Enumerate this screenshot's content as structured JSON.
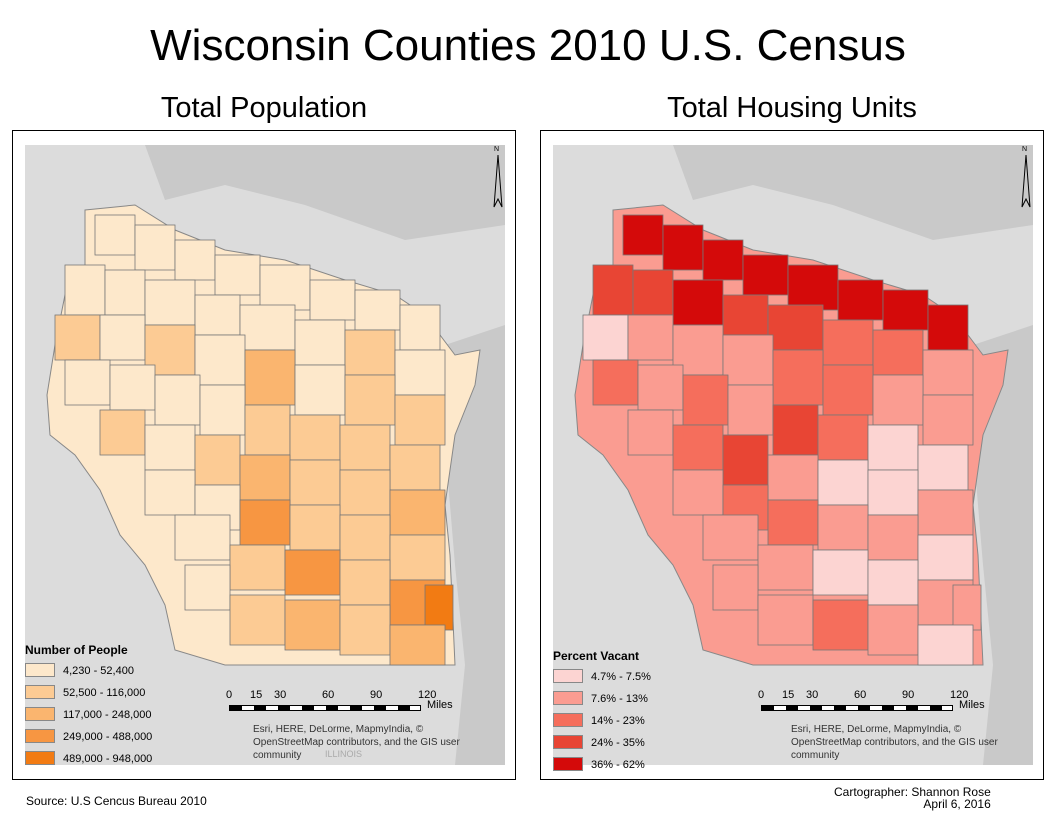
{
  "title": "Wisconsin Counties 2010 U.S. Census",
  "maps": {
    "left": {
      "subtitle": "Total Population",
      "legend_title": "Number of People",
      "legend": [
        {
          "label": "4,230 - 52,400",
          "color": "#fde8cb"
        },
        {
          "label": "52,500 - 116,000",
          "color": "#fccb94"
        },
        {
          "label": "117,000 - 248,000",
          "color": "#fab56f"
        },
        {
          "label": "249,000 - 488,000",
          "color": "#f79642"
        },
        {
          "label": "489,000 - 948,000",
          "color": "#f27b13"
        }
      ]
    },
    "right": {
      "subtitle": "Total Housing Units",
      "legend_title": "Percent Vacant",
      "legend": [
        {
          "label": "4.7% - 7.5%",
          "color": "#fcd4d2"
        },
        {
          "label": "7.6% - 13%",
          "color": "#fa9c91"
        },
        {
          "label": "14% - 23%",
          "color": "#f56e5c"
        },
        {
          "label": "24% - 35%",
          "color": "#e84534"
        },
        {
          "label": "36% - 62%",
          "color": "#d40a0a"
        }
      ]
    }
  },
  "scale": {
    "ticks": [
      "0",
      "15",
      "30",
      "60",
      "90",
      "120"
    ],
    "unit": "Miles"
  },
  "north_label": "N",
  "map_label": "ILLINOIS",
  "credits": "Esri, HERE, DeLorme, MapmyIndia, © OpenStreetMap contributors, and the GIS user community",
  "footer": {
    "source": "Source: U.S Cencus Bureau 2010",
    "cartographer": "Cartographer: Shannon Rose",
    "date": "April 6, 2016"
  }
}
